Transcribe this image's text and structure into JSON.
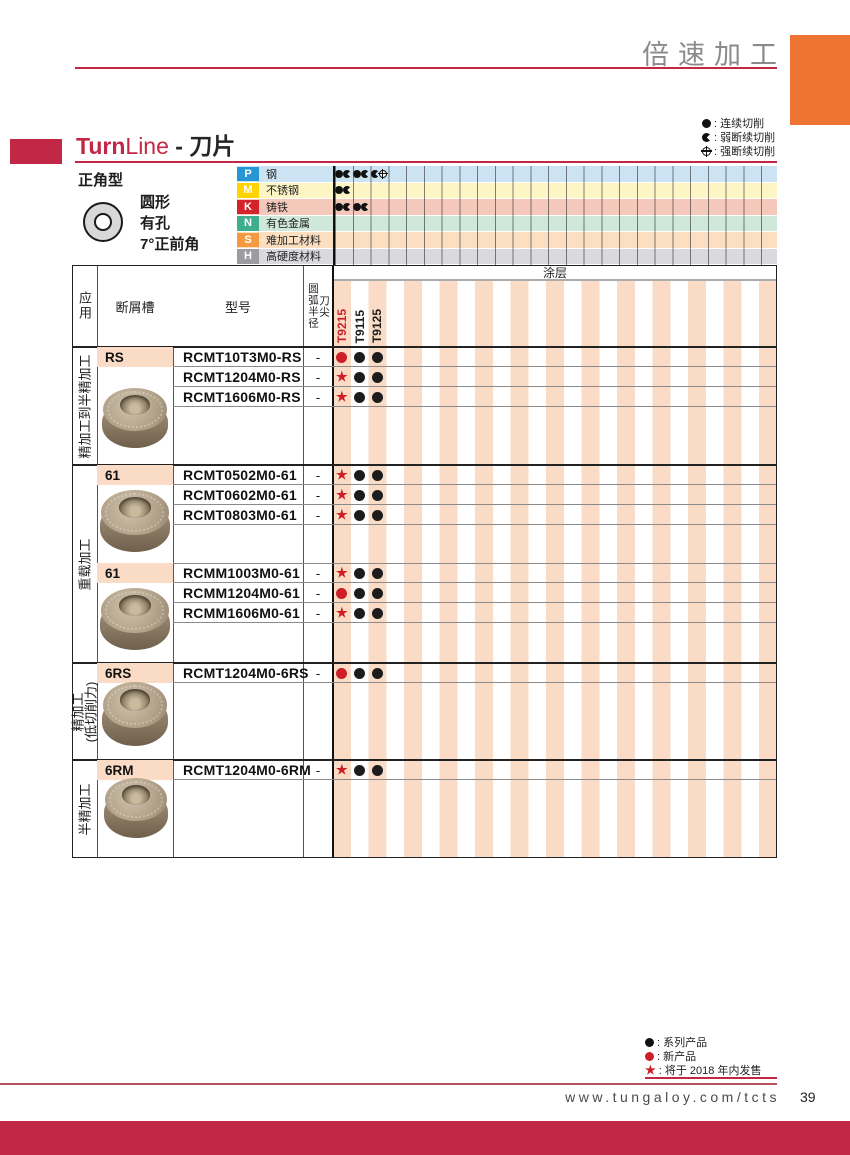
{
  "page": {
    "title": "倍速加工",
    "page_number": "39",
    "footer_url": "www.tungaloy.com/tcts"
  },
  "colors": {
    "accent": "#c22745",
    "orange": "#ee7434",
    "peach": "#fadcc6",
    "red_mark": "#cc2027",
    "black_mark": "#1c1c1c"
  },
  "cut_legend": [
    {
      "symbol": "continuous-cut-icon",
      "type": "cont",
      "label": "连续切削"
    },
    {
      "symbol": "weak-interrupted-cut-icon",
      "type": "weak",
      "label": "弱断续切削"
    },
    {
      "symbol": "strong-interrupted-cut-icon",
      "type": "strong",
      "label": "强断续切削"
    }
  ],
  "heading": {
    "bold": "Turn",
    "light": "Line",
    "suffix": " - 刀片"
  },
  "insert_intro": {
    "style": "正角型",
    "lines": [
      "圆形",
      "有孔",
      "7°正前角"
    ]
  },
  "materials": {
    "rows": [
      {
        "code": "P",
        "label": "钢",
        "chip_color": "#2597d4",
        "band_color": "#cbe3f2",
        "cells": [
          [
            "cont",
            "weak"
          ],
          [
            "cont",
            "weak"
          ],
          [
            "weak",
            "strong"
          ]
        ]
      },
      {
        "code": "M",
        "label": "不锈钢",
        "chip_color": "#ffd400",
        "band_color": "#fdf5c4",
        "cells": [
          [
            "cont",
            "weak"
          ],
          [],
          []
        ]
      },
      {
        "code": "K",
        "label": "铸铁",
        "chip_color": "#d3232b",
        "band_color": "#f5c8bc",
        "cells": [
          [
            "cont",
            "weak"
          ],
          [
            "cont",
            "weak"
          ],
          []
        ]
      },
      {
        "code": "N",
        "label": "有色金属",
        "chip_color": "#3fae8c",
        "band_color": "#cfe8da",
        "cells": [
          [],
          [],
          []
        ]
      },
      {
        "code": "S",
        "label": "难加工材料",
        "chip_color": "#f49b42",
        "band_color": "#fbdfc0",
        "cells": [
          [],
          [],
          []
        ]
      },
      {
        "code": "H",
        "label": "高硬度材料",
        "chip_color": "#9b9ba1",
        "band_color": "#dadade",
        "cells": [
          [],
          [],
          []
        ]
      }
    ]
  },
  "table": {
    "coating_header": "涂层",
    "headers": {
      "application": "应用",
      "chipbreaker": "断屑槽",
      "model": "型号",
      "radius_col_left": "圆弧半径",
      "radius_col_right": "刀尖"
    },
    "coating_columns": [
      {
        "name": "T9215",
        "color": "#cc2027"
      },
      {
        "name": "T9115",
        "color": "#1c1c1c"
      },
      {
        "name": "T9125",
        "color": "#1c1c1c"
      }
    ],
    "groups": [
      {
        "application": [
          "精加工到半精加工"
        ],
        "subgroups": [
          {
            "chipbreaker": "RS",
            "rows": [
              {
                "model": "RCMT10T3M0-RS",
                "radius": "-",
                "marks": [
                  "new",
                  "dot",
                  "dot"
                ]
              },
              {
                "model": "RCMT1204M0-RS",
                "radius": "-",
                "marks": [
                  "star",
                  "dot",
                  "dot"
                ]
              },
              {
                "model": "RCMT1606M0-RS",
                "radius": "-",
                "marks": [
                  "star",
                  "dot",
                  "dot"
                ]
              }
            ]
          }
        ]
      },
      {
        "application": [
          "重载加工"
        ],
        "subgroups": [
          {
            "chipbreaker": "61",
            "rows": [
              {
                "model": "RCMT0502M0-61",
                "radius": "-",
                "marks": [
                  "star",
                  "dot",
                  "dot"
                ]
              },
              {
                "model": "RCMT0602M0-61",
                "radius": "-",
                "marks": [
                  "star",
                  "dot",
                  "dot"
                ]
              },
              {
                "model": "RCMT0803M0-61",
                "radius": "-",
                "marks": [
                  "star",
                  "dot",
                  "dot"
                ]
              }
            ]
          },
          {
            "chipbreaker": "61",
            "rows": [
              {
                "model": "RCMM1003M0-61",
                "radius": "-",
                "marks": [
                  "star",
                  "dot",
                  "dot"
                ]
              },
              {
                "model": "RCMM1204M0-61",
                "radius": "-",
                "marks": [
                  "new",
                  "dot",
                  "dot"
                ]
              },
              {
                "model": "RCMM1606M0-61",
                "radius": "-",
                "marks": [
                  "star",
                  "dot",
                  "dot"
                ]
              }
            ]
          }
        ]
      },
      {
        "application": [
          "精加工",
          "(低切削力)"
        ],
        "subgroups": [
          {
            "chipbreaker": "6RS",
            "rows": [
              {
                "model": "RCMT1204M0-6RS",
                "radius": "-",
                "marks": [
                  "new",
                  "dot",
                  "dot"
                ]
              }
            ]
          }
        ]
      },
      {
        "application": [
          "半精加工"
        ],
        "subgroups": [
          {
            "chipbreaker": "6RM",
            "rows": [
              {
                "model": "RCMT1204M0-6RM",
                "radius": "-",
                "marks": [
                  "star",
                  "dot",
                  "dot"
                ]
              }
            ]
          }
        ]
      }
    ]
  },
  "product_legend": [
    {
      "symbol": "series-dot-icon",
      "type": "dot",
      "label": "系列产品"
    },
    {
      "symbol": "new-dot-icon",
      "type": "new",
      "label": "新产品"
    },
    {
      "symbol": "release-star-icon",
      "type": "star",
      "label": "将于 2018 年内发售"
    }
  ]
}
